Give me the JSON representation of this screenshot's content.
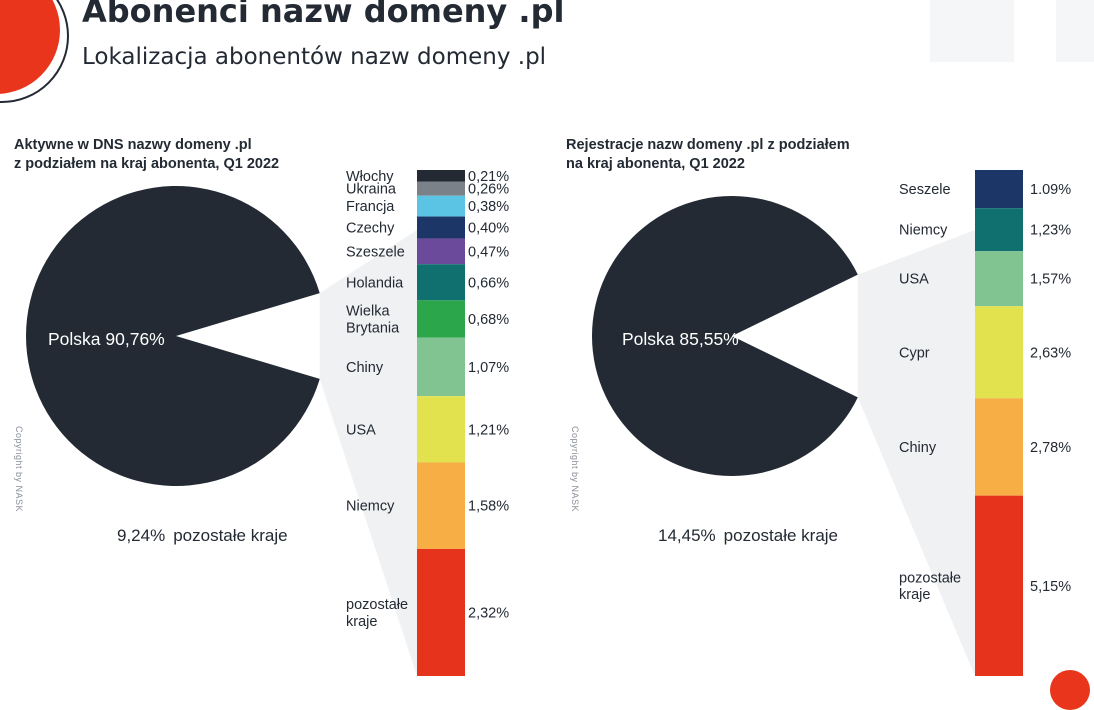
{
  "header": {
    "title": "Abonenci nazw domeny .pl",
    "subtitle": "Lokalizacja abonentów nazw domeny .pl"
  },
  "copyright": "Copyright by NASK",
  "colors": {
    "dark": "#232a33",
    "brand_red": "#e8351c",
    "connector": "#f0f1f3"
  },
  "chart_data": [
    {
      "type": "pie",
      "title": "Aktywne w DNS nazwy domeny .pl\nz podziałem na kraj abonenta, Q1 2022",
      "slices": [
        {
          "label": "Polska",
          "value": 90.76,
          "value_label": "Polska 90,76%"
        },
        {
          "label": "pozostałe kraje",
          "value": 9.24,
          "value_label": "9,24%"
        }
      ],
      "other_label": "pozostałe kraje",
      "breakdown": {
        "type": "stacked-bar",
        "segments": [
          {
            "label": "Włochy",
            "value": 0.21,
            "value_label": "0,21%",
            "color": "#232a33"
          },
          {
            "label": "Ukraina",
            "value": 0.26,
            "value_label": "0,26%",
            "color": "#7a8189"
          },
          {
            "label": "Francja",
            "value": 0.38,
            "value_label": "0,38%",
            "color": "#5bc3e3"
          },
          {
            "label": "Czechy",
            "value": 0.4,
            "value_label": "0,40%",
            "color": "#1c3668"
          },
          {
            "label": "Szeszele",
            "value": 0.47,
            "value_label": "0,47%",
            "color": "#6b4a9c"
          },
          {
            "label": "Holandia",
            "value": 0.66,
            "value_label": "0,66%",
            "color": "#107070"
          },
          {
            "label": "Wielka\nBrytania",
            "value": 0.68,
            "value_label": "0,68%",
            "color": "#2ba64a"
          },
          {
            "label": "Chiny",
            "value": 1.07,
            "value_label": "1,07%",
            "color": "#82c491"
          },
          {
            "label": "USA",
            "value": 1.21,
            "value_label": "1,21%",
            "color": "#e2e24f"
          },
          {
            "label": "Niemcy",
            "value": 1.58,
            "value_label": "1,58%",
            "color": "#f6ae45"
          },
          {
            "label": "pozostałe\nkraje",
            "value": 2.32,
            "value_label": "2,32%",
            "color": "#e5341b"
          }
        ]
      }
    },
    {
      "type": "pie",
      "title": "Rejestracje nazw domeny .pl z podziałem\nna kraj abonenta, Q1 2022",
      "slices": [
        {
          "label": "Polska",
          "value": 85.55,
          "value_label": "Polska 85,55%"
        },
        {
          "label": "pozostałe kraje",
          "value": 14.45,
          "value_label": "14,45%"
        }
      ],
      "other_label": "pozostałe kraje",
      "breakdown": {
        "type": "stacked-bar",
        "segments": [
          {
            "label": "Seszele",
            "value": 1.09,
            "value_label": "1.09%",
            "color": "#1c3668"
          },
          {
            "label": "Niemcy",
            "value": 1.23,
            "value_label": "1,23%",
            "color": "#107070"
          },
          {
            "label": "USA",
            "value": 1.57,
            "value_label": "1,57%",
            "color": "#82c491"
          },
          {
            "label": "Cypr",
            "value": 2.63,
            "value_label": "2,63%",
            "color": "#e2e24f"
          },
          {
            "label": "Chiny",
            "value": 2.78,
            "value_label": "2,78%",
            "color": "#f6ae45"
          },
          {
            "label": "pozostałe\nkraje",
            "value": 5.15,
            "value_label": "5,15%",
            "color": "#e5341b"
          }
        ]
      }
    }
  ]
}
